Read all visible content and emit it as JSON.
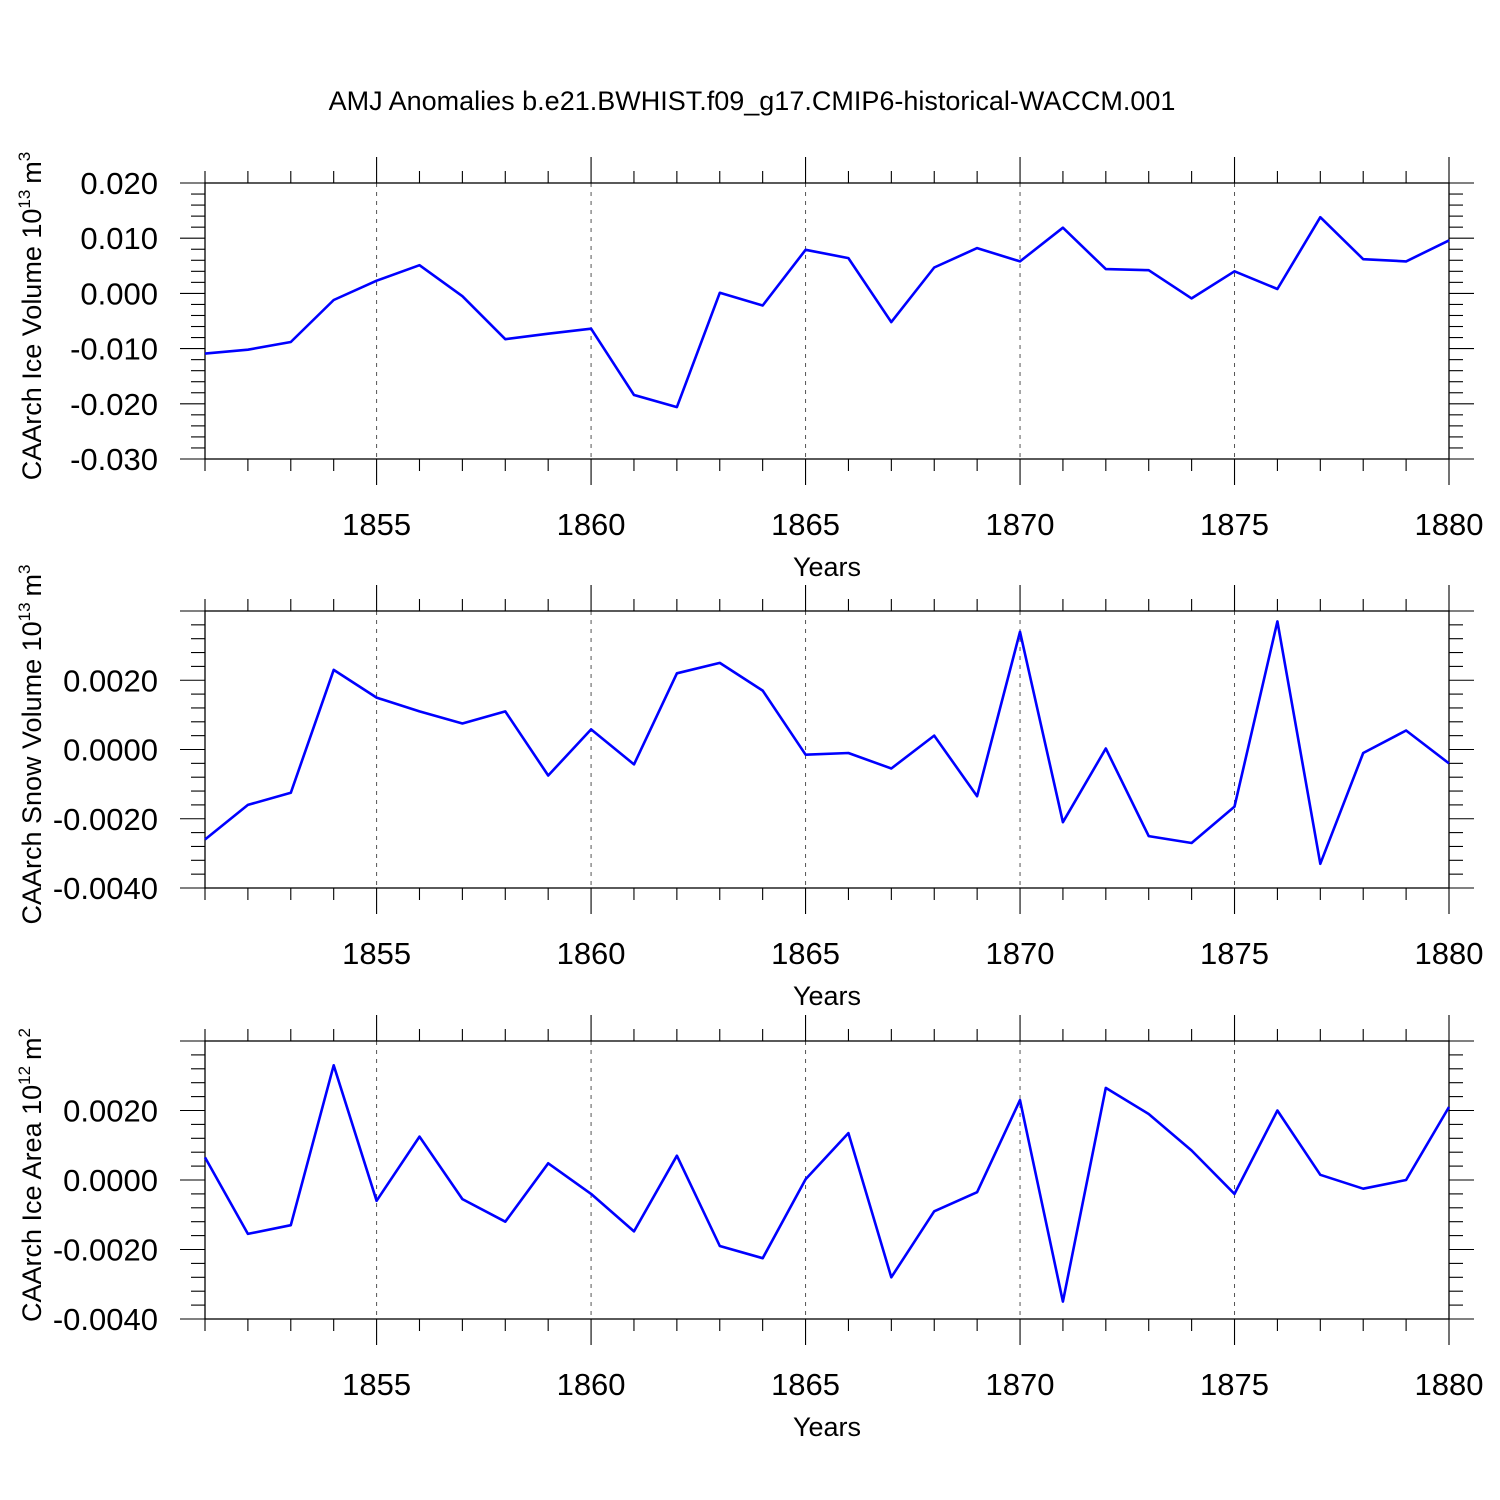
{
  "title": "AMJ Anomalies b.e21.BWHIST.f09_g17.CMIP6-historical-WACCM.001",
  "colors": {
    "line": "#0000ff",
    "frame": "#000000",
    "grid": "#555555"
  },
  "chart_data": [
    {
      "type": "line",
      "title": "AMJ Anomalies b.e21.BWHIST.f09_g17.CMIP6-historical-WACCM.001",
      "xlabel": "Years",
      "ylabel": "CAArch Ice Volume 10",
      "ylabel_exp": "13",
      "ylabel_unit": "m",
      "ylabel_unit_exp": "3",
      "xlim": [
        1851,
        1880
      ],
      "ylim": [
        -0.03,
        0.02
      ],
      "xticks": [
        1855,
        1860,
        1865,
        1870,
        1875,
        1880
      ],
      "xtick_labels": [
        "1855",
        "1860",
        "1865",
        "1870",
        "1875",
        "1880"
      ],
      "yticks": [
        -0.03,
        -0.02,
        -0.01,
        0.0,
        0.01,
        0.02
      ],
      "ytick_labels": [
        "-0.030",
        "-0.020",
        "-0.010",
        "0.000",
        "0.010",
        "0.020"
      ],
      "grid": "vertical dashed at major x ticks",
      "x": [
        1851,
        1852,
        1853,
        1854,
        1855,
        1856,
        1857,
        1858,
        1859,
        1860,
        1861,
        1862,
        1863,
        1864,
        1865,
        1866,
        1867,
        1868,
        1869,
        1870,
        1871,
        1872,
        1873,
        1874,
        1875,
        1876,
        1877,
        1878,
        1879,
        1880
      ],
      "series": [
        {
          "values": [
            -0.0109,
            -0.0102,
            -0.0088,
            -0.0012,
            0.0023,
            0.0051,
            -0.0005,
            -0.0083,
            -0.0073,
            -0.0064,
            -0.0184,
            -0.0206,
            0.0001,
            -0.0022,
            0.0079,
            0.0064,
            -0.0052,
            0.0047,
            0.0082,
            0.0058,
            0.0119,
            0.0044,
            0.0042,
            -0.0009,
            0.004,
            0.0008,
            0.0138,
            0.0062,
            0.0058,
            0.0096
          ]
        }
      ]
    },
    {
      "type": "line",
      "xlabel": "Years",
      "ylabel": "CAArch Snow Volume 10",
      "ylabel_exp": "13",
      "ylabel_unit": "m",
      "ylabel_unit_exp": "3",
      "xlim": [
        1851,
        1880
      ],
      "ylim": [
        -0.004,
        0.004
      ],
      "xticks": [
        1855,
        1860,
        1865,
        1870,
        1875,
        1880
      ],
      "xtick_labels": [
        "1855",
        "1860",
        "1865",
        "1870",
        "1875",
        "1880"
      ],
      "yticks": [
        -0.004,
        -0.002,
        0.0,
        0.002
      ],
      "ytick_labels": [
        "-0.0040",
        "-0.0020",
        "0.0000",
        "0.0020"
      ],
      "grid": "vertical dashed at major x ticks",
      "x": [
        1851,
        1852,
        1853,
        1854,
        1855,
        1856,
        1857,
        1858,
        1859,
        1860,
        1861,
        1862,
        1863,
        1864,
        1865,
        1866,
        1867,
        1868,
        1869,
        1870,
        1871,
        1872,
        1873,
        1874,
        1875,
        1876,
        1877,
        1878,
        1879,
        1880
      ],
      "series": [
        {
          "values": [
            -0.0026,
            -0.0016,
            -0.00125,
            0.0023,
            0.0015,
            0.0011,
            0.00075,
            0.0011,
            -0.00075,
            0.00058,
            -0.00043,
            0.0022,
            0.0025,
            0.0017,
            -0.00015,
            -0.0001,
            -0.00055,
            0.0004,
            -0.00135,
            0.0034,
            -0.0021,
            3e-05,
            -0.0025,
            -0.0027,
            -0.00165,
            0.0037,
            -0.0033,
            -0.0001,
            0.00055,
            -0.0004
          ]
        }
      ]
    },
    {
      "type": "line",
      "xlabel": "Years",
      "ylabel": "CAArch Ice Area 10",
      "ylabel_exp": "12",
      "ylabel_unit": "m",
      "ylabel_unit_exp": "2",
      "xlim": [
        1851,
        1880
      ],
      "ylim": [
        -0.004,
        0.004
      ],
      "xticks": [
        1855,
        1860,
        1865,
        1870,
        1875,
        1880
      ],
      "xtick_labels": [
        "1855",
        "1860",
        "1865",
        "1870",
        "1875",
        "1880"
      ],
      "yticks": [
        -0.004,
        -0.002,
        0.0,
        0.002
      ],
      "ytick_labels": [
        "-0.0040",
        "-0.0020",
        "0.0000",
        "0.0020"
      ],
      "grid": "vertical dashed at major x ticks",
      "x": [
        1851,
        1852,
        1853,
        1854,
        1855,
        1856,
        1857,
        1858,
        1859,
        1860,
        1861,
        1862,
        1863,
        1864,
        1865,
        1866,
        1867,
        1868,
        1869,
        1870,
        1871,
        1872,
        1873,
        1874,
        1875,
        1876,
        1877,
        1878,
        1879,
        1880
      ],
      "series": [
        {
          "values": [
            0.00065,
            -0.00155,
            -0.0013,
            0.0033,
            -0.0006,
            0.00125,
            -0.00055,
            -0.0012,
            0.00048,
            -0.0004,
            -0.00148,
            0.0007,
            -0.0019,
            -0.00225,
            2e-05,
            0.00135,
            -0.0028,
            -0.0009,
            -0.00035,
            0.0023,
            -0.0035,
            0.00265,
            0.0019,
            0.00085,
            -0.0004,
            0.002,
            0.00015,
            -0.00025,
            0.0,
            0.0021
          ]
        }
      ]
    }
  ]
}
